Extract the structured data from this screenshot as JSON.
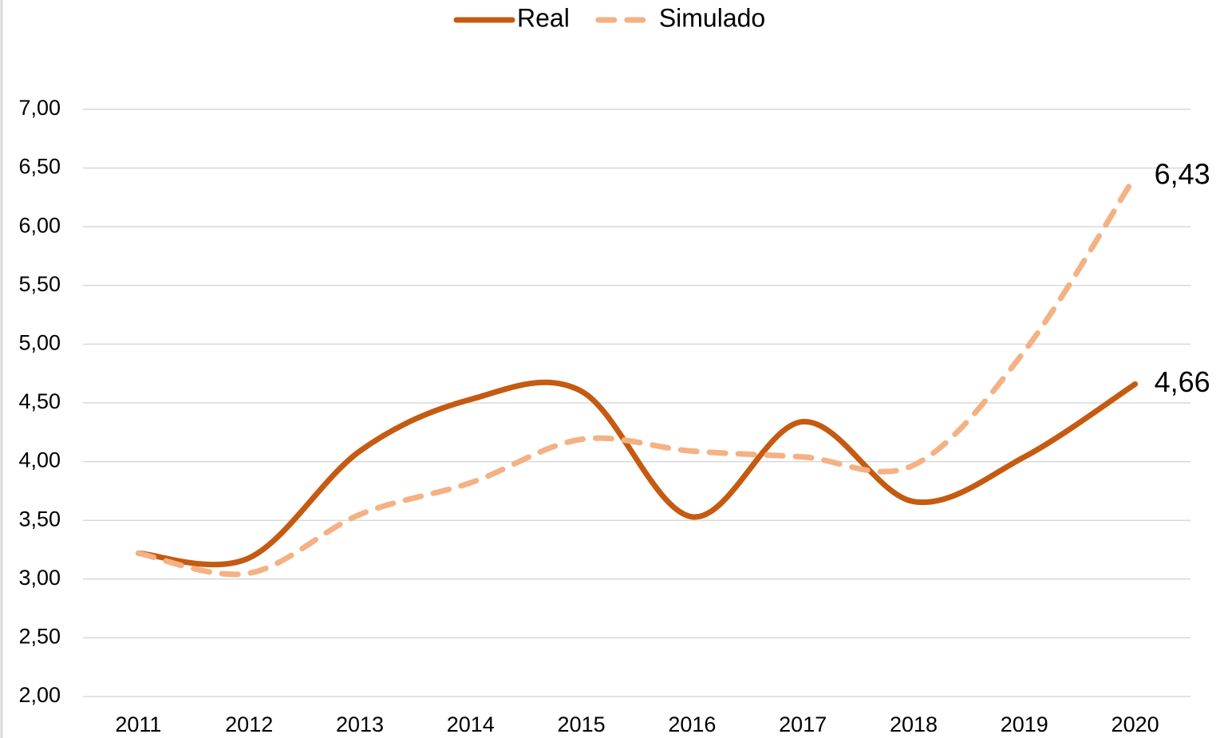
{
  "chart_data": {
    "type": "line",
    "categories": [
      "2011",
      "2012",
      "2013",
      "2014",
      "2015",
      "2016",
      "2017",
      "2018",
      "2019",
      "2020"
    ],
    "series": [
      {
        "name": "Real",
        "color": "#c55a11",
        "dashed": false,
        "values": [
          3.22,
          3.18,
          4.09,
          4.53,
          4.6,
          3.53,
          4.34,
          3.66,
          4.04,
          4.66
        ],
        "value_labels": [
          null,
          null,
          null,
          null,
          null,
          null,
          null,
          null,
          null,
          "4,66"
        ]
      },
      {
        "name": "Simulado",
        "color": "#f4b183",
        "dashed": true,
        "values": [
          3.22,
          3.05,
          3.55,
          3.82,
          4.19,
          4.09,
          4.04,
          3.97,
          4.94,
          6.43
        ],
        "value_labels": [
          null,
          null,
          null,
          null,
          null,
          null,
          null,
          null,
          null,
          "6,43"
        ]
      }
    ],
    "ylim": [
      2,
      7
    ],
    "yticks": [
      {
        "value": 2,
        "label": "2,00"
      },
      {
        "value": 2.5,
        "label": "2,50"
      },
      {
        "value": 3,
        "label": "3,00"
      },
      {
        "value": 3.5,
        "label": "3,50"
      },
      {
        "value": 4,
        "label": "4,00"
      },
      {
        "value": 4.5,
        "label": "4,50"
      },
      {
        "value": 5,
        "label": "5,00"
      },
      {
        "value": 5.5,
        "label": "5,50"
      },
      {
        "value": 6,
        "label": "6,00"
      },
      {
        "value": 6.5,
        "label": "6,50"
      },
      {
        "value": 7,
        "label": "7,00"
      }
    ],
    "grid": true,
    "smooth": true,
    "legend": "top"
  }
}
